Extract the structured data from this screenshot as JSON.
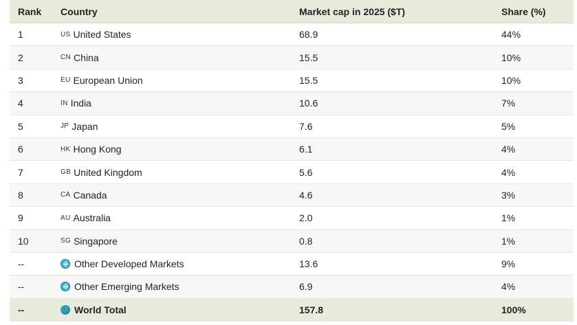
{
  "table": {
    "columns": {
      "rank": "Rank",
      "country": "Country",
      "market_cap": "Market cap in 2025 ($T)",
      "share": "Share (%)"
    },
    "rows": [
      {
        "rank": "1",
        "code": "US",
        "country": "United States",
        "market_cap": "68.9",
        "share": "44%"
      },
      {
        "rank": "2",
        "code": "CN",
        "country": "China",
        "market_cap": "15.5",
        "share": "10%"
      },
      {
        "rank": "3",
        "code": "EU",
        "country": "European Union",
        "market_cap": "15.5",
        "share": "10%"
      },
      {
        "rank": "4",
        "code": "IN",
        "country": "India",
        "market_cap": "10.6",
        "share": "7%"
      },
      {
        "rank": "5",
        "code": "JP",
        "country": "Japan",
        "market_cap": "7.6",
        "share": "5%"
      },
      {
        "rank": "6",
        "code": "HK",
        "country": "Hong Kong",
        "market_cap": "6.1",
        "share": "4%"
      },
      {
        "rank": "7",
        "code": "GB",
        "country": "United Kingdom",
        "market_cap": "5.6",
        "share": "4%"
      },
      {
        "rank": "8",
        "code": "CA",
        "country": "Canada",
        "market_cap": "4.6",
        "share": "3%"
      },
      {
        "rank": "9",
        "code": "AU",
        "country": "Australia",
        "market_cap": "2.0",
        "share": "1%"
      },
      {
        "rank": "10",
        "code": "SG",
        "country": "Singapore",
        "market_cap": "0.8",
        "share": "1%"
      }
    ],
    "aggregates": [
      {
        "rank": "--",
        "icon": "globe-icon",
        "country": "Other Developed Markets",
        "market_cap": "13.6",
        "share": "9%"
      },
      {
        "rank": "--",
        "icon": "globe-icon",
        "country": "Other Emerging Markets",
        "market_cap": "6.9",
        "share": "4%"
      }
    ],
    "total": {
      "rank": "--",
      "icon": "earth-globe-icon",
      "country": "World Total",
      "market_cap": "157.8",
      "share": "100%"
    }
  },
  "colors": {
    "header_bg": "#e6ecdc",
    "total_bg": "#e6ecdc",
    "row_alt_bg": "#f7f8f5",
    "row_border": "#e3e7df"
  }
}
